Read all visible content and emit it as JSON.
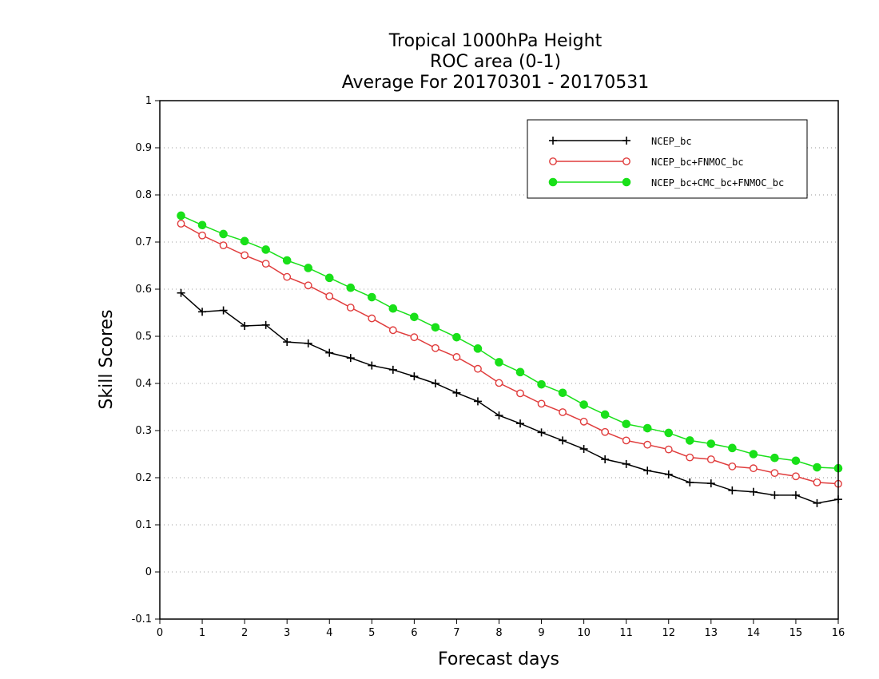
{
  "chart_data": {
    "type": "line",
    "title_lines": [
      "Tropical 1000hPa Height",
      "ROC area (0-1)",
      "Average For 20170301 - 20170531"
    ],
    "xlabel": "Forecast days",
    "ylabel": "Skill Scores",
    "xlim": [
      0,
      16
    ],
    "ylim": [
      -0.1,
      1
    ],
    "xticks": [
      "0",
      "1",
      "2",
      "3",
      "4",
      "5",
      "6",
      "7",
      "8",
      "9",
      "10",
      "11",
      "12",
      "13",
      "14",
      "15",
      "16"
    ],
    "yticks": [
      "-0.1",
      "0",
      "0.1",
      "0.2",
      "0.3",
      "0.4",
      "0.5",
      "0.6",
      "0.7",
      "0.8",
      "0.9",
      "1"
    ],
    "grid": true,
    "legend_position": "top-right",
    "x": [
      0.5,
      1,
      1.5,
      2,
      2.5,
      3,
      3.5,
      4,
      4.5,
      5,
      5.5,
      6,
      6.5,
      7,
      7.5,
      8,
      8.5,
      9,
      9.5,
      10,
      10.5,
      11,
      11.5,
      12,
      12.5,
      13,
      13.5,
      14,
      14.5,
      15,
      15.5,
      16
    ],
    "series": [
      {
        "name": "NCEP_bc",
        "color": "#000000",
        "marker": "plus",
        "values": [
          0.592,
          0.552,
          0.555,
          0.522,
          0.524,
          0.488,
          0.485,
          0.465,
          0.454,
          0.438,
          0.429,
          0.415,
          0.4,
          0.38,
          0.362,
          0.332,
          0.315,
          0.296,
          0.279,
          0.261,
          0.239,
          0.229,
          0.215,
          0.207,
          0.19,
          0.188,
          0.173,
          0.17,
          0.163,
          0.163,
          0.146,
          0.154
        ]
      },
      {
        "name": "NCEP_bc+FNMOC_bc",
        "color": "#e03c3c",
        "marker": "open-circle",
        "values": [
          0.739,
          0.714,
          0.693,
          0.672,
          0.654,
          0.626,
          0.608,
          0.585,
          0.561,
          0.538,
          0.513,
          0.498,
          0.475,
          0.456,
          0.431,
          0.401,
          0.379,
          0.357,
          0.339,
          0.319,
          0.297,
          0.279,
          0.27,
          0.26,
          0.243,
          0.239,
          0.224,
          0.22,
          0.21,
          0.203,
          0.19,
          0.187
        ]
      },
      {
        "name": "NCEP_bc+CMC_bc+FNMOC_bc",
        "color": "#19e019",
        "marker": "filled-circle",
        "values": [
          0.756,
          0.736,
          0.717,
          0.702,
          0.684,
          0.661,
          0.645,
          0.624,
          0.603,
          0.583,
          0.559,
          0.541,
          0.519,
          0.498,
          0.474,
          0.445,
          0.424,
          0.398,
          0.38,
          0.355,
          0.334,
          0.314,
          0.305,
          0.295,
          0.279,
          0.272,
          0.263,
          0.25,
          0.242,
          0.236,
          0.222,
          0.22
        ]
      }
    ]
  }
}
